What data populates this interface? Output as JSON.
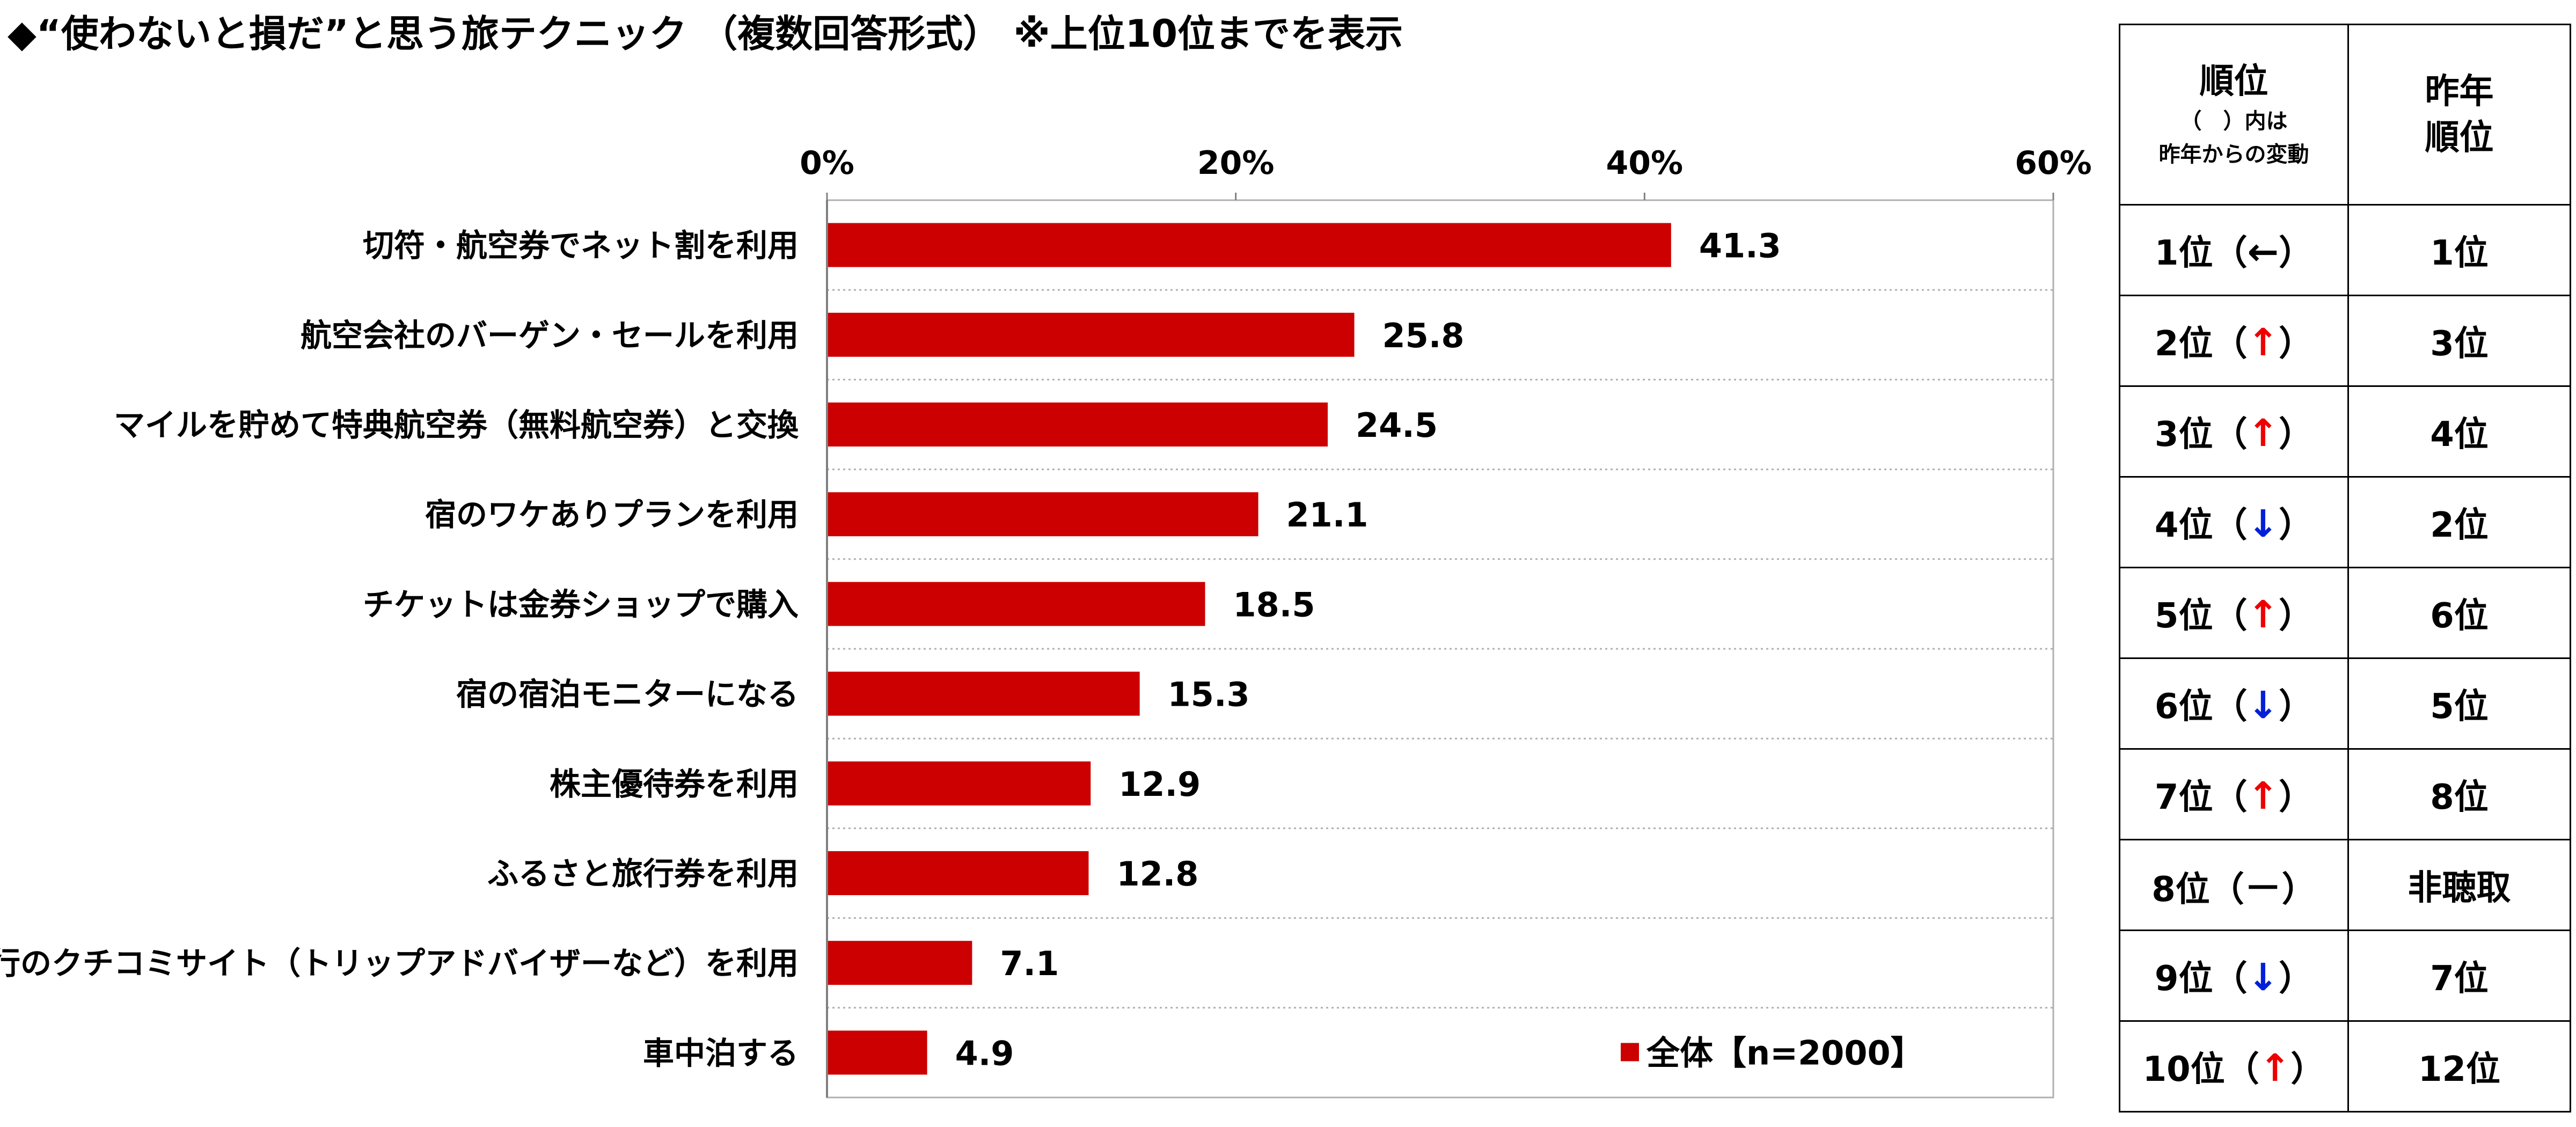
{
  "title": "◆“使わないと損だ”と思う旅テクニック （複数回答形式） ※上位10位までを表示",
  "colors": {
    "bar": "#cc0000",
    "up_arrow": "#ee0000",
    "down_arrow": "#0020d8",
    "grid": "#b0b0b0"
  },
  "chart_data": {
    "type": "bar",
    "orientation": "horizontal",
    "categories": [
      "切符・航空券でネット割を利用",
      "航空会社のバーゲン・セールを利用",
      "マイルを貯めて特典航空券（無料航空券）と交換",
      "宿のワケありプランを利用",
      "チケットは金券ショップで購入",
      "宿の宿泊モニターになる",
      "株主優待券を利用",
      "ふるさと旅行券を利用",
      "旅行のクチコミサイト（トリップアドバイザーなど）を利用",
      "車中泊する"
    ],
    "series": [
      {
        "name": "全体【n=2000】",
        "values": [
          41.3,
          25.8,
          24.5,
          21.1,
          18.5,
          15.3,
          12.9,
          12.8,
          7.1,
          4.9
        ]
      }
    ],
    "value_labels": [
      "41.3",
      "25.8",
      "24.5",
      "21.1",
      "18.5",
      "15.3",
      "12.9",
      "12.8",
      "7.1",
      "4.9"
    ],
    "x_ticks": [
      "0%",
      "20%",
      "40%",
      "60%"
    ],
    "x_tick_values": [
      0,
      20,
      40,
      60
    ],
    "xlim": [
      0,
      60
    ],
    "legend_label": "全体【n=2000】",
    "legend_position": "bottom-right",
    "grid": "horizontal-dotted"
  },
  "rank_table": {
    "header_rank_main": "順位",
    "header_rank_sub1": "（　）内は",
    "header_rank_sub2": "昨年からの変動",
    "header_prev_1": "昨年",
    "header_prev_2": "順位",
    "rows": [
      {
        "rank": "1位",
        "open": "（",
        "arrow": "←",
        "arrow_type": "flat",
        "close": "）",
        "prev": "1位"
      },
      {
        "rank": "2位",
        "open": "（",
        "arrow": "↑",
        "arrow_type": "up",
        "close": "）",
        "prev": "3位"
      },
      {
        "rank": "3位",
        "open": "（",
        "arrow": "↑",
        "arrow_type": "up",
        "close": "）",
        "prev": "4位"
      },
      {
        "rank": "4位",
        "open": "（",
        "arrow": "↓",
        "arrow_type": "down",
        "close": "）",
        "prev": "2位"
      },
      {
        "rank": "5位",
        "open": "（",
        "arrow": "↑",
        "arrow_type": "up",
        "close": "）",
        "prev": "6位"
      },
      {
        "rank": "6位",
        "open": "（",
        "arrow": "↓",
        "arrow_type": "down",
        "close": "）",
        "prev": "5位"
      },
      {
        "rank": "7位",
        "open": "（",
        "arrow": "↑",
        "arrow_type": "up",
        "close": "）",
        "prev": "8位"
      },
      {
        "rank": "8位",
        "open": "（",
        "arrow": "－",
        "arrow_type": "new",
        "close": "）",
        "prev": "非聴取"
      },
      {
        "rank": "9位",
        "open": "（",
        "arrow": "↓",
        "arrow_type": "down",
        "close": "）",
        "prev": "7位"
      },
      {
        "rank": "10位",
        "open": "（",
        "arrow": "↑",
        "arrow_type": "up",
        "close": "）",
        "prev": "12位"
      }
    ]
  }
}
